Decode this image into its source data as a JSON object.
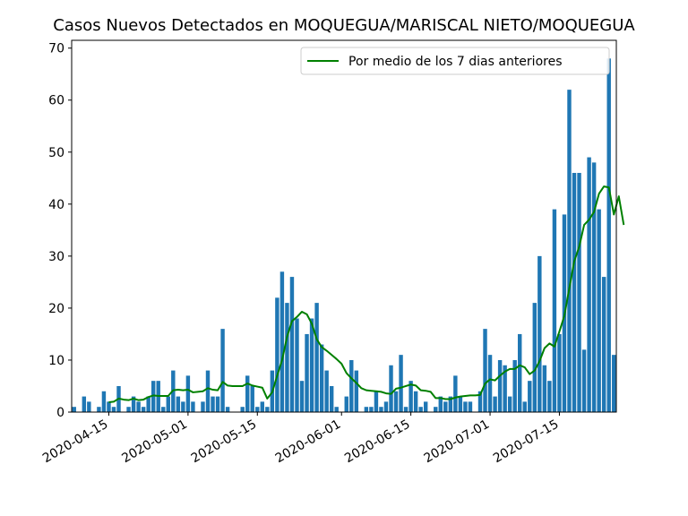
{
  "chart_data": {
    "type": "bar",
    "title": "Casos Nuevos Detectados en MOQUEGUA/MARISCAL NIETO/MOQUEGUA",
    "xlabel": "",
    "ylabel": "",
    "start_date": "2020-04-08",
    "ylim": [
      0,
      71.5
    ],
    "yticks": [
      0,
      10,
      20,
      30,
      40,
      50,
      60,
      70
    ],
    "xticks": [
      "2020-04-15",
      "2020-05-01",
      "2020-05-15",
      "2020-06-01",
      "2020-06-15",
      "2020-07-01",
      "2020-07-15"
    ],
    "bar_color": "#1f77b4",
    "line_color": "#008000",
    "legend": {
      "label": "Por medio de los 7 dias anteriores",
      "placement": "top-right"
    },
    "series": [
      {
        "name": "Casos",
        "type": "bar",
        "values": [
          1,
          0,
          3,
          2,
          0,
          1,
          4,
          2,
          1,
          5,
          0,
          1,
          3,
          2,
          1,
          3,
          6,
          6,
          1,
          3,
          8,
          3,
          2,
          7,
          2,
          0,
          2,
          8,
          3,
          3,
          16,
          1,
          0,
          0,
          1,
          7,
          5,
          1,
          2,
          1,
          8,
          22,
          27,
          21,
          26,
          18,
          6,
          15,
          18,
          21,
          13,
          8,
          5,
          1,
          0,
          3,
          10,
          8,
          0,
          1,
          1,
          4,
          1,
          2,
          9,
          4,
          11,
          1,
          6,
          4,
          1,
          2,
          0,
          1,
          3,
          2,
          3,
          7,
          3,
          2,
          2,
          0,
          4,
          16,
          11,
          3,
          10,
          9,
          3,
          10,
          15,
          2,
          6,
          21,
          30,
          9,
          6,
          39,
          15,
          38,
          62,
          46,
          46,
          12,
          49,
          48,
          39,
          26,
          68,
          11
        ]
      },
      {
        "name": "Por medio de los 7 dias anteriores",
        "type": "line",
        "start_index": 7,
        "values": [
          1.9,
          2,
          2.6,
          2.4,
          2.3,
          2.6,
          2.3,
          2.4,
          2.9,
          3.2,
          3.1,
          3.1,
          3.1,
          4.2,
          4.3,
          4.2,
          4.3,
          3.8,
          3.9,
          4,
          4.6,
          4.3,
          4.2,
          5.8,
          5.1,
          5,
          5,
          5,
          5.5,
          5.1,
          4.9,
          4.7,
          2.6,
          3.8,
          7,
          10,
          14.5,
          17.5,
          18.3,
          19.3,
          18.8,
          17,
          14,
          12.5,
          11.8,
          11,
          10.2,
          9.3,
          7.5,
          6.5,
          5.6,
          4.6,
          4.2,
          4.1,
          4,
          3.9,
          3.6,
          3.5,
          4.5,
          4.7,
          5,
          5.3,
          5.1,
          4.2,
          4.1,
          3.9,
          2.7,
          2.7,
          2.5,
          2.5,
          2.8,
          3,
          3.1,
          3.2,
          3.2,
          3.3,
          5.5,
          6.3,
          6.1,
          7,
          7.8,
          8.3,
          8.3,
          9,
          8.6,
          7.3,
          8,
          9.8,
          12.3,
          13.2,
          12.6,
          15.5,
          18.5,
          23.8,
          29,
          31.8,
          36,
          37,
          38.5,
          42,
          43.4,
          43.2,
          38,
          41.5,
          36
        ]
      }
    ]
  }
}
